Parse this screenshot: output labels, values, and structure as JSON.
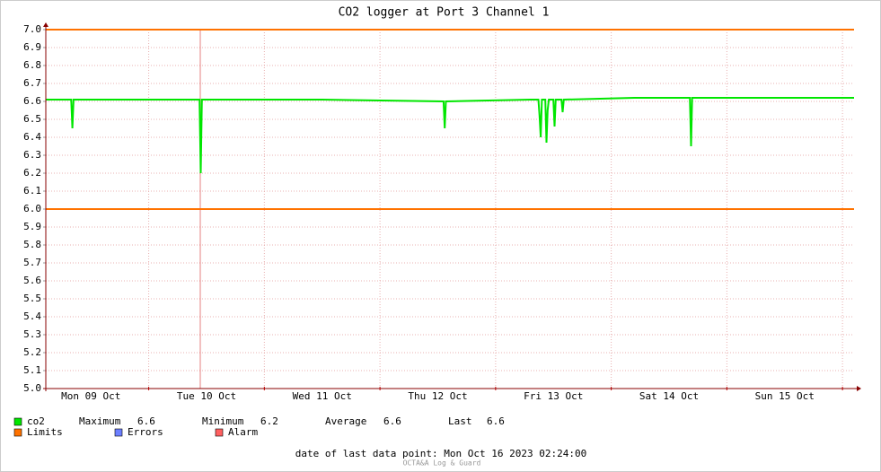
{
  "chart_data": {
    "type": "line",
    "title": "CO2 logger at Port 3 Channel 1",
    "xlim": [
      0.11,
      7.1
    ],
    "xticks": [
      {
        "value": 0.5,
        "label": "Mon 09 Oct"
      },
      {
        "value": 1.5,
        "label": "Tue 10 Oct"
      },
      {
        "value": 2.5,
        "label": "Wed 11 Oct"
      },
      {
        "value": 3.5,
        "label": "Thu 12 Oct"
      },
      {
        "value": 4.5,
        "label": "Fri 13 Oct"
      },
      {
        "value": 5.5,
        "label": "Sat 14 Oct"
      },
      {
        "value": 6.5,
        "label": "Sun 15 Oct"
      }
    ],
    "ylim": [
      5.0,
      7.0
    ],
    "yticks": [
      {
        "value": 5.0,
        "label": "5.0"
      },
      5.1,
      5.2,
      5.3,
      5.4,
      5.5,
      5.6,
      5.7,
      5.8,
      5.9,
      {
        "value": 6.0,
        "label": "6.0"
      },
      6.1,
      6.2,
      6.3,
      6.4,
      6.5,
      6.6,
      6.7,
      6.8,
      6.9,
      {
        "value": 7.0,
        "label": "7.0"
      }
    ],
    "grid": true,
    "series": [
      {
        "name": "co2",
        "color": "#00e600",
        "x": [
          0.11,
          0.33,
          0.34,
          0.35,
          1.0,
          1.44,
          1.45,
          1.46,
          2.5,
          3.55,
          3.56,
          3.57,
          4.3,
          4.37,
          4.38,
          4.39,
          4.4,
          4.43,
          4.44,
          4.45,
          4.46,
          4.5,
          4.51,
          4.52,
          4.57,
          4.58,
          4.59,
          5.2,
          5.68,
          5.69,
          5.7,
          6.5,
          7.1
        ],
        "values": [
          6.61,
          6.61,
          6.45,
          6.61,
          6.61,
          6.61,
          6.2,
          6.61,
          6.61,
          6.6,
          6.45,
          6.6,
          6.61,
          6.61,
          6.52,
          6.4,
          6.61,
          6.61,
          6.37,
          6.55,
          6.61,
          6.61,
          6.46,
          6.61,
          6.61,
          6.54,
          6.61,
          6.62,
          6.62,
          6.35,
          6.62,
          6.62,
          6.62
        ]
      }
    ],
    "limits": {
      "name": "Limits",
      "color": "#ff7200",
      "values": [
        7.0,
        6.0
      ]
    },
    "stats": [
      {
        "label": "Maximum",
        "value": 6.6
      },
      {
        "label": "Minimum",
        "value": 6.2
      },
      {
        "label": "Average",
        "value": 6.6
      },
      {
        "label": "Last",
        "value": 6.6
      }
    ],
    "legend_extra": [
      {
        "name": "Errors",
        "color": "#6c7fff"
      },
      {
        "name": "Alarm",
        "color": "#ff6060"
      }
    ],
    "footer": "date of last data point:  Mon Oct 16 2023 02:24:00",
    "credit": "OCTA&A Log & Guard"
  }
}
